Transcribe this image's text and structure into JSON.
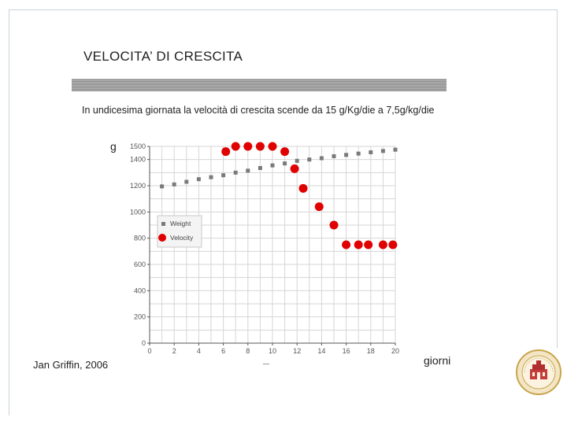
{
  "slide": {
    "title": "VELOCITA’ DI CRESCITA",
    "subtitle": "In undicesima giornata la velocità di crescita scende da 15 g/Kg/die a 7,5g/kg/die",
    "author": "Jan Griffin, 2006"
  },
  "colors": {
    "weight": "#7a7a7a",
    "velocity": "#e00000",
    "grid": "#d6d6d6",
    "axis": "#555555"
  },
  "chart_data": {
    "type": "scatter",
    "title": "",
    "ylabel": "g",
    "xlabel": "giorni",
    "ylim": [
      0,
      1500
    ],
    "xlim": [
      0,
      20
    ],
    "yticks": [
      0,
      200,
      400,
      600,
      800,
      1000,
      1200,
      1400,
      1500
    ],
    "ytick_labels": [
      "0",
      "200",
      "400",
      "600",
      "800",
      "1000",
      "1200",
      "1400",
      "1500"
    ],
    "xticks": [
      0,
      2,
      4,
      6,
      8,
      10,
      12,
      14,
      16,
      18,
      20
    ],
    "xtick_labels": [
      "0",
      "2",
      "4",
      "6",
      "8",
      "10",
      "12",
      "14",
      "16",
      "18",
      "20"
    ],
    "grid": true,
    "legend_position": "left",
    "series": [
      {
        "name": "Weight",
        "marker": "square",
        "x": [
          1,
          2,
          3,
          4,
          5,
          6,
          7,
          8,
          9,
          10,
          11,
          12,
          13,
          14,
          15,
          16,
          17,
          18,
          19,
          20
        ],
        "y": [
          1195,
          1210,
          1230,
          1250,
          1265,
          1280,
          1300,
          1315,
          1335,
          1355,
          1370,
          1390,
          1400,
          1410,
          1425,
          1435,
          1445,
          1455,
          1465,
          1475
        ]
      },
      {
        "name": "Velocity",
        "marker": "circle",
        "x": [
          6.2,
          7,
          8,
          9,
          10,
          11,
          11.8,
          12.5,
          13.8,
          15,
          16,
          17,
          17.8,
          19,
          19.8
        ],
        "y": [
          1460,
          1500,
          1500,
          1500,
          1500,
          1460,
          1330,
          1180,
          1040,
          900,
          750,
          750,
          750,
          750,
          750
        ]
      }
    ]
  }
}
